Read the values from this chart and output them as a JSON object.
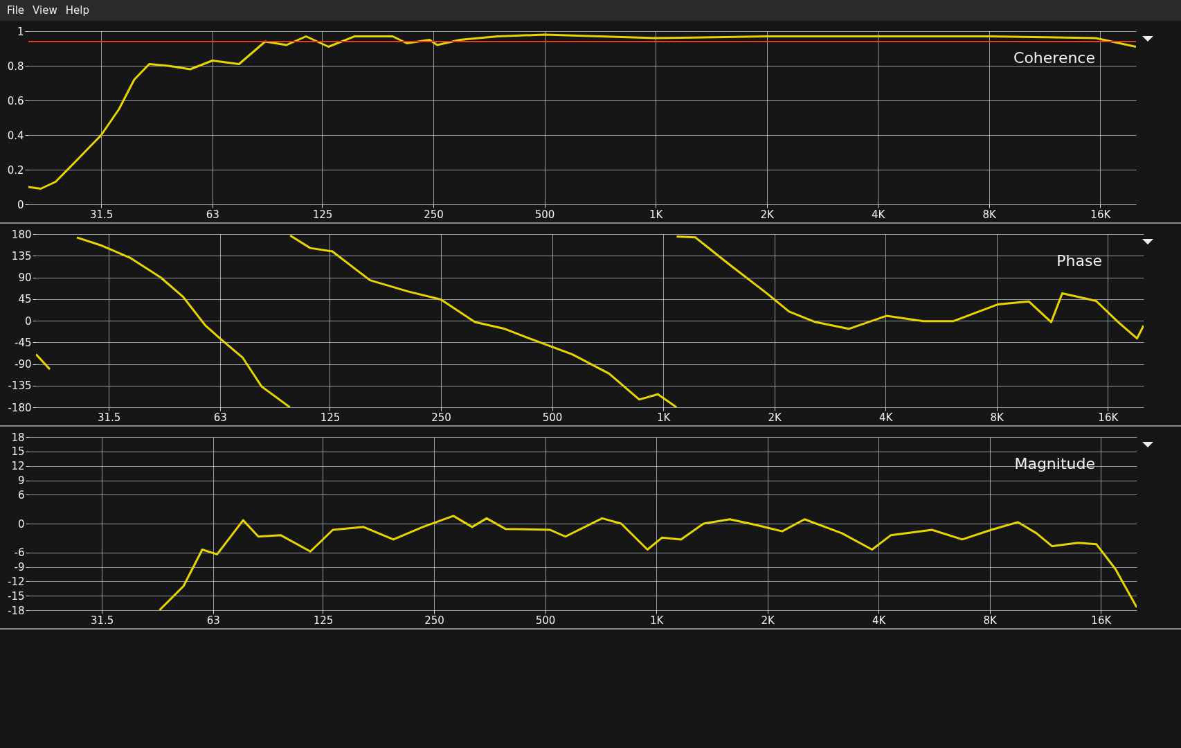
{
  "chart_data": [
    {
      "type": "line",
      "title": "Coherence",
      "annotations": [
        "File",
        "View",
        "Help"
      ],
      "grid": true,
      "log": "x",
      "xlim": [
        20,
        20000
      ],
      "xticks": [
        {
          "value": 31.5,
          "label": "31.5"
        },
        63,
        125,
        250,
        500,
        {
          "value": 1000,
          "label": "1K"
        },
        {
          "value": 2000,
          "label": "2K"
        },
        {
          "value": 4000,
          "label": "4K"
        },
        {
          "value": 8000,
          "label": "8K"
        },
        {
          "value": 16000,
          "label": "16K"
        }
      ],
      "ylim": [
        0,
        1
      ],
      "yticks": [
        0,
        0.2,
        0.4,
        0.6,
        0.8,
        1
      ],
      "ref_lines": [
        {
          "axis": "y",
          "value": 0.94,
          "color": "#e0401e"
        }
      ],
      "series": [
        {
          "color": "#e8d400",
          "x": [
            20,
            21.6,
            23.7,
            27.2,
            31.5,
            35.2,
            38.7,
            42.5,
            47.7,
            54.9,
            63,
            74.4,
            87.6,
            100,
            113,
            130,
            153,
            194,
            212,
            244,
            256,
            295,
            373,
            500,
            1000,
            2000,
            4000,
            8000,
            15560,
            20000
          ],
          "values": [
            0.1,
            0.09,
            0.13,
            0.26,
            0.4,
            0.55,
            0.72,
            0.81,
            0.8,
            0.78,
            0.83,
            0.81,
            0.94,
            0.92,
            0.97,
            0.91,
            0.97,
            0.97,
            0.93,
            0.95,
            0.92,
            0.95,
            0.97,
            0.98,
            0.96,
            0.97,
            0.97,
            0.97,
            0.96,
            0.91
          ]
        }
      ]
    },
    {
      "type": "line",
      "title": "Phase",
      "grid": true,
      "log": "x",
      "xlim": [
        20,
        20000
      ],
      "xticks": [
        {
          "value": 31.5,
          "label": "31.5"
        },
        63,
        125,
        250,
        500,
        {
          "value": 1000,
          "label": "1K"
        },
        {
          "value": 2000,
          "label": "2K"
        },
        {
          "value": 4000,
          "label": "4K"
        },
        {
          "value": 8000,
          "label": "8K"
        },
        {
          "value": 16000,
          "label": "16K"
        }
      ],
      "ylim": [
        -180,
        180
      ],
      "yticks": [
        -180,
        -135,
        -90,
        -45,
        0,
        45,
        90,
        135,
        180
      ],
      "series": [
        {
          "color": "#e8d400",
          "x": [
            20,
            21.8,
            24,
            25.8,
            29.9,
            36.1,
            43.5,
            50,
            57.5,
            63,
            72.6,
            81.7,
            97.4,
            97.5,
            97.6,
            110.6,
            127,
            160.6,
            203,
            250,
            309,
            372,
            448,
            567,
            713,
            861,
            967,
            1086,
            1086.5,
            1087,
            1222,
            1509,
            1906,
            2192,
            2584,
            3180,
            4022,
            5070,
            6110,
            8070,
            9770,
            11240,
            12040,
            14870,
            17070,
            19190,
            20000
          ],
          "values": [
            -70,
            -101,
            null,
            173,
            157,
            130,
            90,
            50,
            -10,
            -37,
            -77,
            -137,
            -180,
            null,
            177,
            151,
            144,
            84,
            61,
            44,
            -3,
            -17,
            -41,
            -70,
            -110,
            -164,
            -153,
            -180,
            null,
            175,
            173,
            117,
            57,
            19,
            -3,
            -17,
            10,
            -1,
            -1,
            34,
            40,
            -3,
            57,
            41,
            -3,
            -37,
            -10
          ]
        }
      ]
    },
    {
      "type": "line",
      "title": "Magnitude",
      "grid": true,
      "log": "x",
      "xlim": [
        20,
        20000
      ],
      "xticks": [
        {
          "value": 31.5,
          "label": "31.5"
        },
        63,
        125,
        250,
        500,
        {
          "value": 1000,
          "label": "1K"
        },
        {
          "value": 2000,
          "label": "2K"
        },
        {
          "value": 4000,
          "label": "4K"
        },
        {
          "value": 8000,
          "label": "8K"
        },
        {
          "value": 16000,
          "label": "16K"
        }
      ],
      "ylim": [
        -18,
        18
      ],
      "yticks": [
        -18,
        -15,
        -12,
        -9,
        -6,
        0,
        6,
        9,
        12,
        15,
        18
      ],
      "series": [
        {
          "color": "#e8d400",
          "x": [
            45.1,
            52.4,
            58.9,
            64.6,
            76,
            83.6,
            96,
            115.6,
            133,
            161,
            194,
            233,
            282,
            317,
            347,
            390,
            516,
            567,
            713,
            803,
            946,
            1037,
            1166,
            1342,
            1581,
            1864,
            2192,
            2520,
            3180,
            3840,
            4320,
            5580,
            6740,
            8070,
            9540,
            10700,
            11800,
            13870,
            15560,
            17500,
            20000
          ],
          "values": [
            -18,
            -13,
            -5.4,
            -6.4,
            0.7,
            -2.7,
            -2.4,
            -5.8,
            -1.3,
            -0.7,
            -3.3,
            -0.7,
            1.6,
            -0.7,
            1.1,
            -1.1,
            -1.3,
            -2.7,
            1.1,
            0,
            -5.4,
            -2.9,
            -3.3,
            0,
            0.9,
            -0.3,
            -1.6,
            0.9,
            -2,
            -5.4,
            -2.4,
            -1.3,
            -3.3,
            -1.3,
            0.3,
            -2,
            -4.7,
            -4,
            -4.3,
            -9.4,
            -17.4
          ]
        }
      ]
    }
  ]
}
